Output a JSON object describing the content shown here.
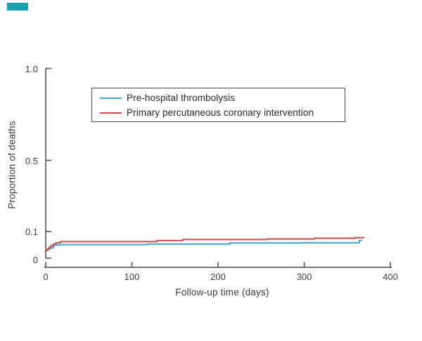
{
  "accent_bar": {
    "color": "#1e9faf"
  },
  "y_axis": {
    "title": "Proportion of deaths",
    "ticks": [
      {
        "label": "0",
        "value": 0
      },
      {
        "label": "0.1",
        "value": 0.1
      },
      {
        "label": "0.5",
        "value": 0.5
      },
      {
        "label": "1.0",
        "value": 1.0
      }
    ]
  },
  "x_axis": {
    "title": "Follow-up time (days)",
    "ticks": [
      {
        "label": "0",
        "value": 0
      },
      {
        "label": "100",
        "value": 100
      },
      {
        "label": "200",
        "value": 200
      },
      {
        "label": "300",
        "value": 300
      },
      {
        "label": "400",
        "value": 400
      }
    ]
  },
  "legend": {
    "items": [
      {
        "label": "Pre-hospital thrombolysis",
        "color": "#3fa6da"
      },
      {
        "label": "Primary percutaneous coronary intervention",
        "color": "#cf4a4a"
      }
    ]
  },
  "chart_data": {
    "type": "line",
    "step": true,
    "title": "",
    "xlabel": "Follow-up time (days)",
    "ylabel": "Proportion of deaths",
    "xlim": [
      0,
      400
    ],
    "ylim": [
      0,
      1.0
    ],
    "x_ticks": [
      0,
      100,
      200,
      300,
      400
    ],
    "y_ticks": [
      0,
      0.1,
      0.5,
      1.0
    ],
    "legend_position": "upper-left-inside",
    "series": [
      {
        "name": "Pre-hospital thrombolysis",
        "color": "#3fa6da",
        "end_day": 367,
        "points": [
          [
            0,
            0.029
          ],
          [
            2,
            0.034
          ],
          [
            5,
            0.039
          ],
          [
            9,
            0.049
          ],
          [
            16,
            0.051
          ],
          [
            118,
            0.053
          ],
          [
            214,
            0.057
          ],
          [
            296,
            0.058
          ],
          [
            364,
            0.066
          ]
        ]
      },
      {
        "name": "Primary percutaneous coronary intervention",
        "color": "#cf4a4a",
        "end_day": 370,
        "points": [
          [
            0,
            0.029
          ],
          [
            2,
            0.035
          ],
          [
            4,
            0.041
          ],
          [
            6,
            0.047
          ],
          [
            9,
            0.053
          ],
          [
            12,
            0.058
          ],
          [
            17,
            0.062
          ],
          [
            129,
            0.066
          ],
          [
            159,
            0.07
          ],
          [
            257,
            0.072
          ],
          [
            312,
            0.075
          ],
          [
            359,
            0.077
          ]
        ]
      }
    ]
  }
}
